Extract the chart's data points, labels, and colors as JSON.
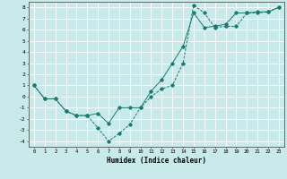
{
  "xlabel": "Humidex (Indice chaleur)",
  "ylabel": "",
  "background_color": "#c8eaea",
  "grid_color": "#ffffff",
  "line_color": "#1a7a6e",
  "xlim": [
    -0.5,
    23.5
  ],
  "ylim": [
    -4.5,
    8.5
  ],
  "xticks": [
    0,
    1,
    2,
    3,
    4,
    5,
    6,
    7,
    8,
    9,
    10,
    11,
    12,
    13,
    14,
    15,
    16,
    17,
    18,
    19,
    20,
    21,
    22,
    23
  ],
  "yticks": [
    -4,
    -3,
    -2,
    -1,
    0,
    1,
    2,
    3,
    4,
    5,
    6,
    7,
    8
  ],
  "line1_x": [
    0,
    1,
    2,
    3,
    4,
    5,
    6,
    7,
    8,
    9,
    10,
    11,
    12,
    13,
    14,
    15,
    16,
    17,
    18,
    19,
    20,
    21,
    22,
    23
  ],
  "line1_y": [
    1.0,
    -0.2,
    -0.2,
    -1.3,
    -1.7,
    -1.7,
    -2.8,
    -4.0,
    -3.3,
    -2.5,
    -1.0,
    0.0,
    0.7,
    1.0,
    3.0,
    8.2,
    7.5,
    6.2,
    6.3,
    6.3,
    7.5,
    7.5,
    7.6,
    8.0
  ],
  "line2_x": [
    0,
    1,
    2,
    3,
    4,
    5,
    6,
    7,
    8,
    9,
    10,
    11,
    12,
    13,
    14,
    15,
    16,
    17,
    18,
    19,
    20,
    21,
    22,
    23
  ],
  "line2_y": [
    1.0,
    -0.2,
    -0.2,
    -1.3,
    -1.7,
    -1.7,
    -1.5,
    -2.4,
    -1.0,
    -1.0,
    -1.0,
    0.5,
    1.5,
    3.0,
    4.5,
    7.5,
    6.2,
    6.3,
    6.5,
    7.5,
    7.5,
    7.6,
    7.6,
    8.0
  ],
  "figwidth": 3.2,
  "figheight": 2.0,
  "dpi": 100
}
